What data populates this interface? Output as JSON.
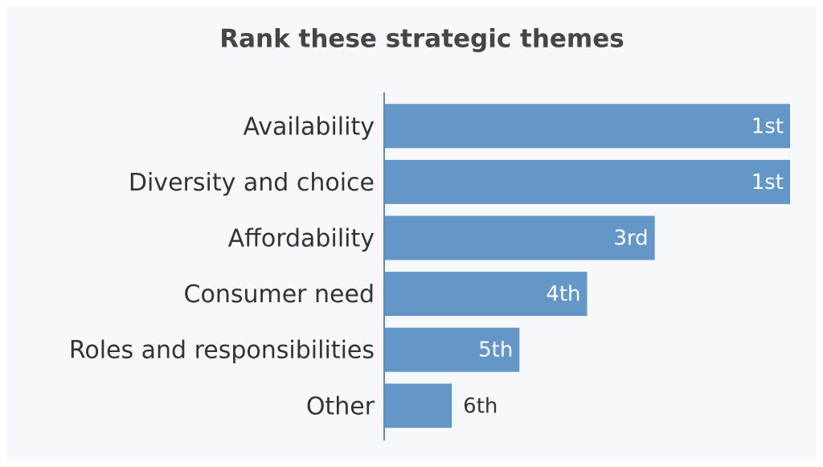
{
  "chart_data": {
    "type": "bar",
    "orientation": "horizontal",
    "title": "Rank these strategic themes",
    "categories": [
      "Availability",
      "Diversity and choice",
      "Affordability",
      "Consumer need",
      "Roles and responsibilities",
      "Other"
    ],
    "values": [
      1,
      1,
      3,
      4,
      5,
      6
    ],
    "value_labels": [
      "1st",
      "1st",
      "3rd",
      "4th",
      "5th",
      "6th"
    ],
    "color": "#6496c8",
    "xlim": [
      7,
      1
    ]
  }
}
